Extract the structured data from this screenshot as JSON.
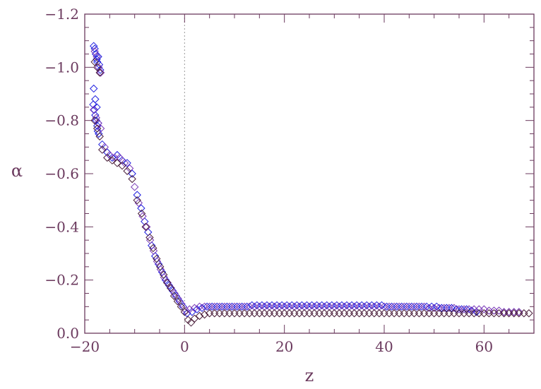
{
  "chart_data": {
    "type": "scatter",
    "title": "",
    "xlabel": "z",
    "ylabel": "α",
    "xlim": [
      -20,
      70
    ],
    "ylim": [
      0.0,
      -1.2
    ],
    "y_axis_inverted": true,
    "grid": false,
    "legend": "none",
    "marker": "diamond",
    "x_ticks": [
      {
        "value": -20,
        "label": "−20"
      },
      {
        "value": 0,
        "label": "0"
      },
      {
        "value": 20,
        "label": "20"
      },
      {
        "value": 40,
        "label": "40"
      },
      {
        "value": 60,
        "label": "60"
      }
    ],
    "y_ticks": [
      {
        "value": 0.0,
        "label": "0.0"
      },
      {
        "value": -0.2,
        "label": "−0.2"
      },
      {
        "value": -0.4,
        "label": "−0.4"
      },
      {
        "value": -0.6,
        "label": "−0.6"
      },
      {
        "value": -0.8,
        "label": "−0.8"
      },
      {
        "value": -1.0,
        "label": "−1.0"
      },
      {
        "value": -1.2,
        "label": "−1.2"
      }
    ],
    "reference_lines": [
      {
        "axis": "x",
        "value": 0,
        "style": "dotted"
      }
    ],
    "colors": {
      "axis": "#6b3a5e",
      "text": "#6b3a5e",
      "marker_blue": "#2020e0",
      "marker_violet": "#7a3ab8",
      "marker_dark": "#4a1e3a",
      "reference_line": "#9a9a9a"
    },
    "series": [
      {
        "color": "#2020e0",
        "x": [
          -18.2,
          -18.0,
          -17.8,
          -17.6,
          -17.5,
          -17.3,
          -17.1,
          -16.9,
          -18.3,
          -18.1,
          -17.9,
          -17.7,
          -17.5,
          -17.4,
          -17.2,
          -18.2,
          -17.9,
          -17.6,
          -17.3,
          -16.5,
          -15.5,
          -14.5,
          -13.5,
          -12.5,
          -11.5,
          -10.5,
          -9.5,
          -8.7,
          -8.0,
          -7.3,
          -6.6,
          -5.9,
          -5.2,
          -4.5,
          -3.8,
          -3.1,
          -2.4,
          -1.7,
          -1.0,
          -0.3,
          0.5,
          1.5,
          2.5,
          3.5,
          4.5,
          5.5,
          6.5,
          7.5,
          8.5,
          9.5,
          10.5,
          11.5,
          12.5,
          13.5,
          14.5,
          15.5,
          16.5,
          17.5,
          18.5,
          19.5,
          20.5,
          21.5,
          22.5,
          23.5,
          24.5,
          25.5,
          26.5,
          27.5,
          28.5,
          29.5,
          30.5,
          31.5,
          32.5,
          33.5,
          34.5,
          35.5,
          36.5,
          37.5,
          38.5,
          39.5,
          40.5,
          41.5,
          42.5,
          43.5,
          44.5,
          45.5,
          46.5,
          47.5,
          48.5,
          49.5,
          50.5,
          51.5,
          52.5,
          53.5,
          54.5,
          55.5,
          56.5,
          57.5,
          58.5
        ],
        "y": [
          -1.08,
          -1.07,
          -1.05,
          -1.03,
          -1.02,
          -1.04,
          -1.01,
          -0.99,
          -0.86,
          -0.84,
          -0.82,
          -0.8,
          -0.78,
          -0.76,
          -0.75,
          -0.92,
          -0.88,
          -0.85,
          -0.79,
          -0.71,
          -0.68,
          -0.66,
          -0.67,
          -0.65,
          -0.64,
          -0.6,
          -0.52,
          -0.47,
          -0.42,
          -0.38,
          -0.33,
          -0.29,
          -0.26,
          -0.23,
          -0.2,
          -0.18,
          -0.16,
          -0.14,
          -0.12,
          -0.1,
          -0.075,
          -0.08,
          -0.09,
          -0.095,
          -0.1,
          -0.1,
          -0.1,
          -0.1,
          -0.1,
          -0.1,
          -0.1,
          -0.1,
          -0.1,
          -0.105,
          -0.105,
          -0.105,
          -0.105,
          -0.105,
          -0.105,
          -0.105,
          -0.105,
          -0.105,
          -0.105,
          -0.105,
          -0.105,
          -0.105,
          -0.105,
          -0.105,
          -0.105,
          -0.105,
          -0.105,
          -0.105,
          -0.105,
          -0.105,
          -0.105,
          -0.105,
          -0.105,
          -0.105,
          -0.105,
          -0.105,
          -0.1,
          -0.1,
          -0.1,
          -0.1,
          -0.1,
          -0.1,
          -0.1,
          -0.1,
          -0.1,
          -0.1,
          -0.1,
          -0.095,
          -0.095,
          -0.095,
          -0.09,
          -0.09,
          -0.09,
          -0.085,
          -0.08
        ]
      },
      {
        "color": "#7a3ab8",
        "x": [
          -18.0,
          -17.6,
          -17.2,
          -16.8,
          -18.2,
          -17.7,
          -17.3,
          -16.8,
          -16.0,
          -15.0,
          -14.0,
          -13.0,
          -12.0,
          -11.0,
          -10.0,
          -9.2,
          -8.4,
          -7.6,
          -6.9,
          -6.2,
          -5.5,
          -4.8,
          -4.1,
          -3.4,
          -2.7,
          -2.0,
          -1.3,
          -0.6,
          0.3,
          1.0,
          2.0,
          3.0,
          4.0,
          5.0,
          6.0,
          7.0,
          8.0,
          9.0,
          10.0,
          11.0,
          12.0,
          13.0,
          14.0,
          15.0,
          16.0,
          17.0,
          18.0,
          19.0,
          20.0,
          21.0,
          22.0,
          23.0,
          24.0,
          25.0,
          26.0,
          27.0,
          28.0,
          29.0,
          30.0,
          31.0,
          32.0,
          33.0,
          34.0,
          35.0,
          36.0,
          37.0,
          38.0,
          39.0,
          40.0,
          41.0,
          42.0,
          43.0,
          44.0,
          45.0,
          46.0,
          47.0,
          48.0,
          49.0,
          50.0,
          51.0,
          52.0,
          53.0,
          54.0,
          55.0,
          56.0,
          57.0,
          58.0,
          59.0,
          60.0,
          61.0,
          62.0,
          63.0,
          64.0,
          65.0,
          66.0,
          67.0
        ],
        "y": [
          -1.06,
          -1.04,
          -1.0,
          -0.98,
          -0.84,
          -0.81,
          -0.79,
          -0.77,
          -0.7,
          -0.67,
          -0.66,
          -0.66,
          -0.64,
          -0.62,
          -0.55,
          -0.49,
          -0.44,
          -0.4,
          -0.35,
          -0.31,
          -0.27,
          -0.24,
          -0.21,
          -0.19,
          -0.17,
          -0.15,
          -0.13,
          -0.11,
          -0.085,
          -0.09,
          -0.095,
          -0.1,
          -0.1,
          -0.1,
          -0.1,
          -0.1,
          -0.1,
          -0.1,
          -0.1,
          -0.1,
          -0.1,
          -0.1,
          -0.1,
          -0.1,
          -0.1,
          -0.1,
          -0.1,
          -0.1,
          -0.1,
          -0.1,
          -0.1,
          -0.1,
          -0.1,
          -0.1,
          -0.1,
          -0.1,
          -0.1,
          -0.1,
          -0.1,
          -0.1,
          -0.1,
          -0.1,
          -0.1,
          -0.1,
          -0.1,
          -0.1,
          -0.1,
          -0.1,
          -0.1,
          -0.1,
          -0.1,
          -0.1,
          -0.1,
          -0.1,
          -0.1,
          -0.1,
          -0.1,
          -0.095,
          -0.095,
          -0.095,
          -0.095,
          -0.095,
          -0.095,
          -0.09,
          -0.09,
          -0.09,
          -0.09,
          -0.09,
          -0.09,
          -0.085,
          -0.085,
          -0.085,
          -0.08,
          -0.08,
          -0.08,
          -0.08
        ]
      },
      {
        "color": "#4a1e3a",
        "x": [
          -18.0,
          -17.5,
          -17.0,
          -18.0,
          -17.5,
          -17.0,
          -16.5,
          -15.5,
          -14.5,
          -13.5,
          -12.5,
          -11.5,
          -10.5,
          -9.5,
          -8.6,
          -7.8,
          -7.0,
          -6.3,
          -5.6,
          -4.9,
          -4.2,
          -3.5,
          -2.8,
          -2.1,
          -1.4,
          -0.7,
          0.0,
          0.7,
          1.3,
          2.0,
          3.0,
          4.0,
          5.0,
          6.0,
          7.0,
          8.0,
          9.0,
          10.0,
          11.0,
          12.0,
          13.0,
          14.0,
          15.0,
          16.0,
          17.0,
          18.0,
          19.0,
          20.0,
          21.0,
          22.0,
          23.0,
          24.0,
          25.0,
          26.0,
          27.0,
          28.0,
          29.0,
          30.0,
          31.0,
          32.0,
          33.0,
          34.0,
          35.0,
          36.0,
          37.0,
          38.0,
          39.0,
          40.0,
          41.0,
          42.0,
          43.0,
          44.0,
          45.0,
          46.0,
          47.0,
          48.0,
          49.0,
          50.0,
          51.0,
          52.0,
          53.0,
          54.0,
          55.0,
          56.0,
          57.0,
          58.0,
          59.0,
          60.0,
          61.0,
          62.0,
          63.0,
          64.0,
          65.0,
          66.0,
          67.0,
          68.0,
          69.0
        ],
        "y": [
          -1.02,
          -1.0,
          -0.98,
          -0.8,
          -0.77,
          -0.74,
          -0.69,
          -0.66,
          -0.65,
          -0.64,
          -0.63,
          -0.61,
          -0.58,
          -0.5,
          -0.45,
          -0.4,
          -0.36,
          -0.32,
          -0.28,
          -0.25,
          -0.22,
          -0.19,
          -0.17,
          -0.14,
          -0.12,
          -0.1,
          -0.08,
          -0.05,
          -0.04,
          -0.055,
          -0.065,
          -0.07,
          -0.075,
          -0.075,
          -0.075,
          -0.075,
          -0.075,
          -0.075,
          -0.075,
          -0.075,
          -0.075,
          -0.075,
          -0.075,
          -0.075,
          -0.075,
          -0.075,
          -0.075,
          -0.075,
          -0.075,
          -0.075,
          -0.075,
          -0.075,
          -0.075,
          -0.075,
          -0.075,
          -0.075,
          -0.075,
          -0.075,
          -0.075,
          -0.075,
          -0.075,
          -0.075,
          -0.075,
          -0.075,
          -0.075,
          -0.075,
          -0.075,
          -0.075,
          -0.075,
          -0.075,
          -0.075,
          -0.075,
          -0.075,
          -0.075,
          -0.075,
          -0.075,
          -0.075,
          -0.075,
          -0.075,
          -0.075,
          -0.075,
          -0.075,
          -0.075,
          -0.075,
          -0.075,
          -0.075,
          -0.075,
          -0.075,
          -0.075,
          -0.075,
          -0.075,
          -0.075,
          -0.075,
          -0.075,
          -0.075,
          -0.075,
          -0.075
        ]
      }
    ]
  }
}
